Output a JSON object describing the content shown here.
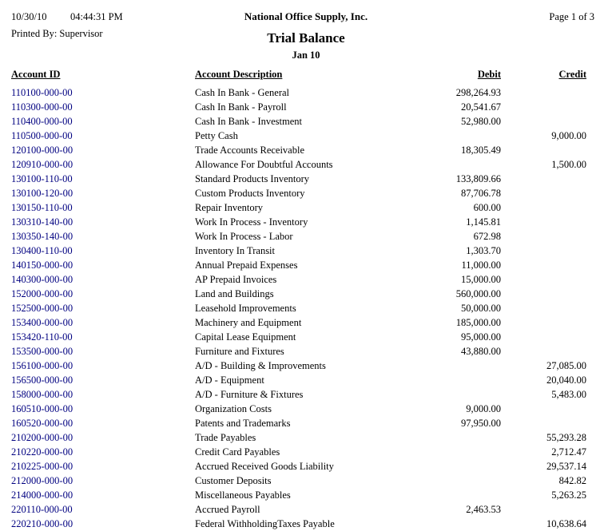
{
  "header": {
    "date": "10/30/10",
    "time": "04:44:31 PM",
    "printed_by": "Printed By: Supervisor",
    "company": "National Office Supply, Inc.",
    "title": "Trial Balance",
    "period": "Jan 10",
    "page": "Page 1 of 3"
  },
  "colors": {
    "account_id": "#000080"
  },
  "table": {
    "columns": [
      "Account ID",
      "Account Description",
      "Debit",
      "Credit"
    ],
    "rows": [
      {
        "id": "110100-000-00",
        "description": "Cash In Bank - General",
        "debit": "298,264.93",
        "credit": ""
      },
      {
        "id": "110300-000-00",
        "description": "Cash In Bank - Payroll",
        "debit": "20,541.67",
        "credit": ""
      },
      {
        "id": "110400-000-00",
        "description": "Cash In Bank - Investment",
        "debit": "52,980.00",
        "credit": ""
      },
      {
        "id": "110500-000-00",
        "description": "Petty Cash",
        "debit": "",
        "credit": "9,000.00"
      },
      {
        "id": "120100-000-00",
        "description": "Trade Accounts Receivable",
        "debit": "18,305.49",
        "credit": ""
      },
      {
        "id": "120910-000-00",
        "description": "Allowance For Doubtful Accounts",
        "debit": "",
        "credit": "1,500.00"
      },
      {
        "id": "130100-110-00",
        "description": "Standard Products Inventory",
        "debit": "133,809.66",
        "credit": ""
      },
      {
        "id": "130100-120-00",
        "description": "Custom Products Inventory",
        "debit": "87,706.78",
        "credit": ""
      },
      {
        "id": "130150-110-00",
        "description": "Repair Inventory",
        "debit": "600.00",
        "credit": ""
      },
      {
        "id": "130310-140-00",
        "description": "Work In Process - Inventory",
        "debit": "1,145.81",
        "credit": ""
      },
      {
        "id": "130350-140-00",
        "description": "Work In Process - Labor",
        "debit": "672.98",
        "credit": ""
      },
      {
        "id": "130400-110-00",
        "description": "Inventory In Transit",
        "debit": "1,303.70",
        "credit": ""
      },
      {
        "id": "140150-000-00",
        "description": "Annual Prepaid Expenses",
        "debit": "11,000.00",
        "credit": ""
      },
      {
        "id": "140300-000-00",
        "description": "AP Prepaid Invoices",
        "debit": "15,000.00",
        "credit": ""
      },
      {
        "id": "152000-000-00",
        "description": "Land and Buildings",
        "debit": "560,000.00",
        "credit": ""
      },
      {
        "id": "152500-000-00",
        "description": "Leasehold Improvements",
        "debit": "50,000.00",
        "credit": ""
      },
      {
        "id": "153400-000-00",
        "description": "Machinery and Equipment",
        "debit": "185,000.00",
        "credit": ""
      },
      {
        "id": "153420-110-00",
        "description": "Capital Lease Equipment",
        "debit": "95,000.00",
        "credit": ""
      },
      {
        "id": "153500-000-00",
        "description": "Furniture and Fixtures",
        "debit": "43,880.00",
        "credit": ""
      },
      {
        "id": "156100-000-00",
        "description": "A/D - Building & Improvements",
        "debit": "",
        "credit": "27,085.00"
      },
      {
        "id": "156500-000-00",
        "description": "A/D - Equipment",
        "debit": "",
        "credit": "20,040.00"
      },
      {
        "id": "158000-000-00",
        "description": "A/D - Furniture & Fixtures",
        "debit": "",
        "credit": "5,483.00"
      },
      {
        "id": "160510-000-00",
        "description": "Organization Costs",
        "debit": "9,000.00",
        "credit": ""
      },
      {
        "id": "160520-000-00",
        "description": "Patents and Trademarks",
        "debit": "97,950.00",
        "credit": ""
      },
      {
        "id": "210200-000-00",
        "description": "Trade Payables",
        "debit": "",
        "credit": "55,293.28"
      },
      {
        "id": "210220-000-00",
        "description": "Credit Card Payables",
        "debit": "",
        "credit": "2,712.47"
      },
      {
        "id": "210225-000-00",
        "description": "Accrued Received Goods Liability",
        "debit": "",
        "credit": "29,537.14"
      },
      {
        "id": "212000-000-00",
        "description": "Customer Deposits",
        "debit": "",
        "credit": "842.82"
      },
      {
        "id": "214000-000-00",
        "description": "Miscellaneous Payables",
        "debit": "",
        "credit": "5,263.25"
      },
      {
        "id": "220110-000-00",
        "description": "Accrued Payroll",
        "debit": "2,463.53",
        "credit": ""
      },
      {
        "id": "220210-000-00",
        "description": "Federal WithholdingTaxes Payable",
        "debit": "",
        "credit": "10,638.64"
      }
    ]
  }
}
